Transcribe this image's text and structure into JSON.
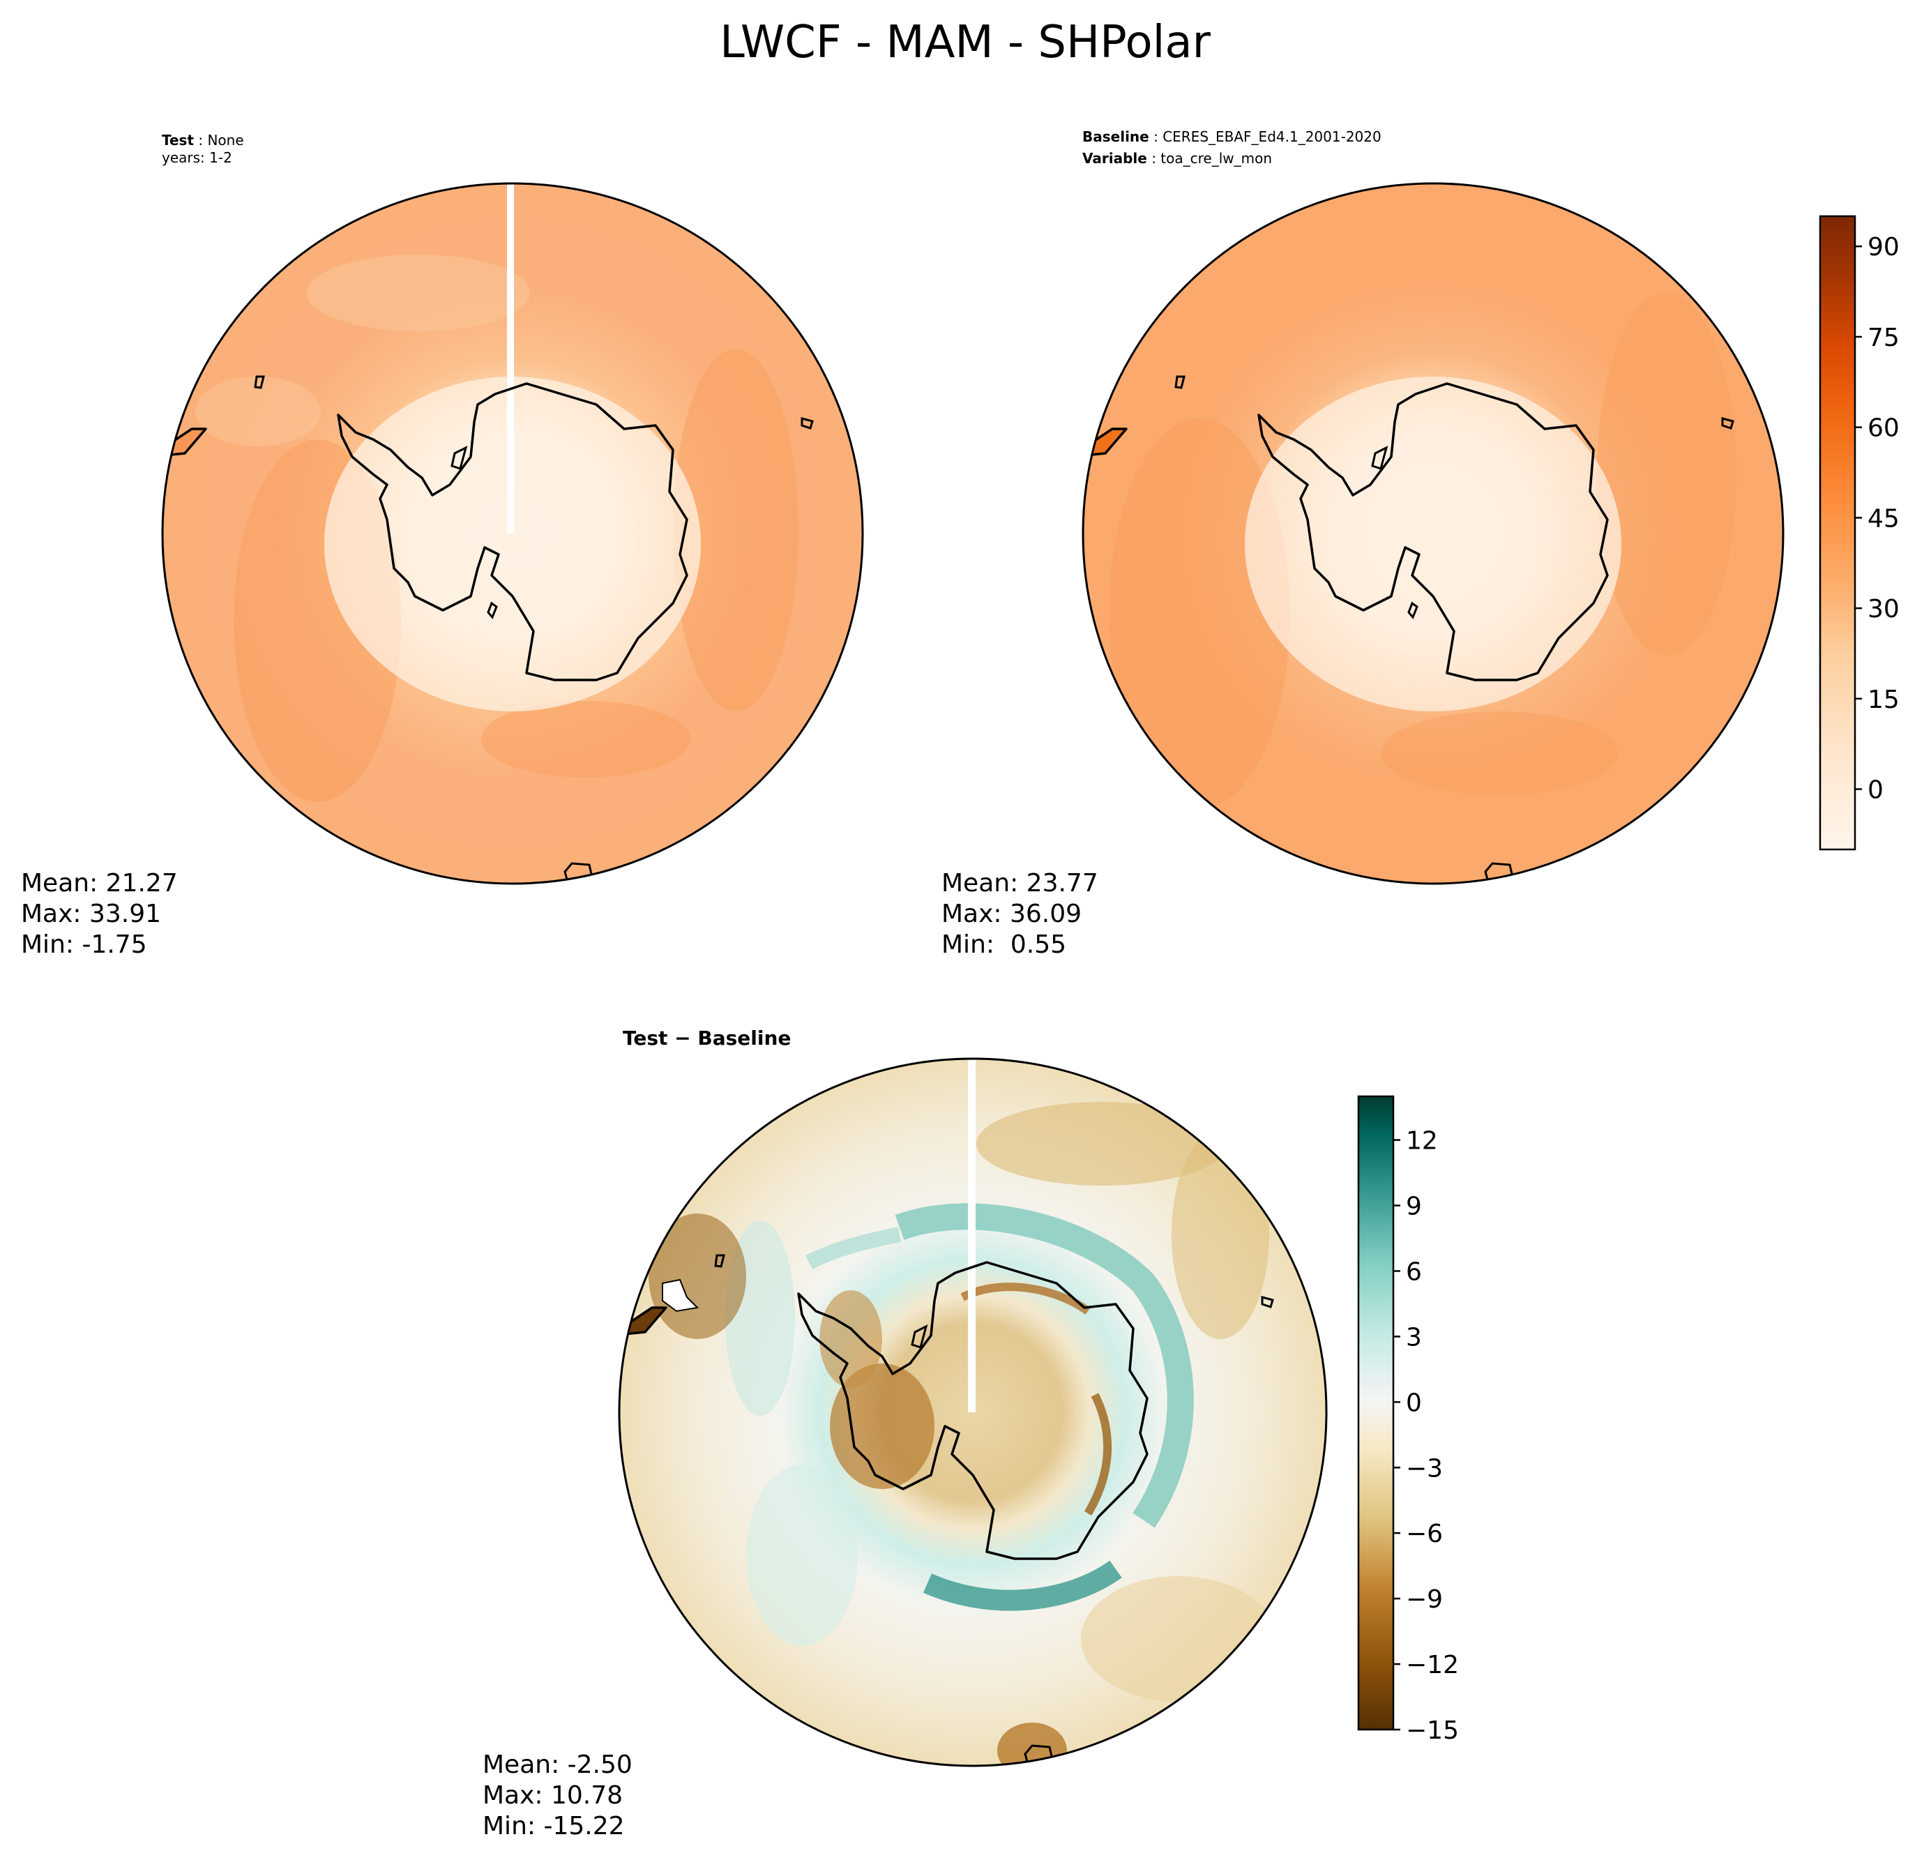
{
  "title": "LWCF - MAM - SHPolar",
  "colors": {
    "orange_ramp": [
      "#fff5eb",
      "#fee6ce",
      "#fdd0a2",
      "#fdae6b",
      "#fd8d3c",
      "#f16913",
      "#d94801",
      "#a63603",
      "#7f2704"
    ],
    "diff_ramp": [
      "#543005",
      "#8c510a",
      "#bf812d",
      "#dfc27d",
      "#f6e8c3",
      "#f5f5f5",
      "#c7eae5",
      "#80cdc1",
      "#35978f",
      "#01665e",
      "#003c30"
    ],
    "coastline": "#000000"
  },
  "chart_data": [
    {
      "type": "heatmap",
      "panel": "test",
      "projection": "south-polar-stereographic",
      "header": [
        {
          "key": "Test",
          "value": "None"
        },
        {
          "key": "",
          "value": "years: 1-2"
        }
      ],
      "stats": {
        "mean": "Mean: 21.27",
        "max": "Max: 33.91",
        "min": "Min: -1.75"
      },
      "value_range": [
        -1.75,
        33.91
      ],
      "colormap": "orange_ramp"
    },
    {
      "type": "heatmap",
      "panel": "baseline",
      "projection": "south-polar-stereographic",
      "header": [
        {
          "key": "Baseline",
          "value": "CERES_EBAF_Ed4.1_2001-2020"
        },
        {
          "key": "Variable",
          "value": "toa_cre_lw_mon"
        }
      ],
      "stats": {
        "mean": "Mean: 23.77",
        "max": "Max: 36.09",
        "min": "Min:  0.55"
      },
      "value_range": [
        0.55,
        36.09
      ],
      "colormap": "orange_ramp",
      "colorbar": {
        "vmin": -10,
        "vmax": 95,
        "ticks": [
          0,
          15,
          30,
          45,
          60,
          75,
          90
        ],
        "tick_labels": [
          "0",
          "15",
          "30",
          "45",
          "60",
          "75",
          "90"
        ]
      }
    },
    {
      "type": "heatmap",
      "panel": "difference",
      "projection": "south-polar-stereographic",
      "header_title": "Test − Baseline",
      "stats": {
        "mean": "Mean: -2.50",
        "max": "Max: 10.78",
        "min": "Min: -15.22"
      },
      "value_range": [
        -15.22,
        10.78
      ],
      "colormap": "diff_ramp",
      "colorbar": {
        "vmin": -15,
        "vmax": 14,
        "ticks": [
          -15,
          -12,
          -9,
          -6,
          -3,
          0,
          3,
          6,
          9,
          12
        ],
        "tick_labels": [
          "−15",
          "−12",
          "−9",
          "−6",
          "−3",
          "0",
          "3",
          "6",
          "9",
          "12"
        ]
      }
    }
  ]
}
